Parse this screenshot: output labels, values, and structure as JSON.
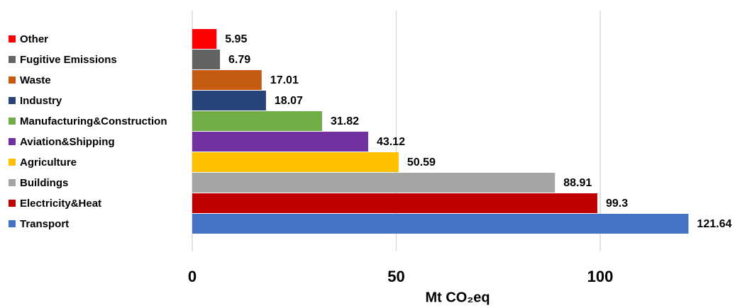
{
  "chart_data": {
    "type": "bar",
    "orientation": "horizontal",
    "categories": [
      "Other",
      "Fugitive Emissions",
      "Waste",
      "Industry",
      "Manufacturing&Construction",
      "Aviation&Shipping",
      "Agriculture",
      "Buildings",
      "Electricity&Heat",
      "Transport"
    ],
    "values": [
      5.95,
      6.79,
      17.01,
      18.07,
      31.82,
      43.12,
      50.59,
      88.91,
      99.3,
      121.64
    ],
    "colors": [
      "#ff0000",
      "#636363",
      "#c55a11",
      "#264478",
      "#70ad47",
      "#7030a0",
      "#ffc000",
      "#a5a5a5",
      "#c00000",
      "#4472c4"
    ],
    "xlabel": "Mt CO₂eq",
    "xlim": [
      0,
      132
    ],
    "xticks": [
      0,
      50,
      100
    ],
    "grid": true
  }
}
